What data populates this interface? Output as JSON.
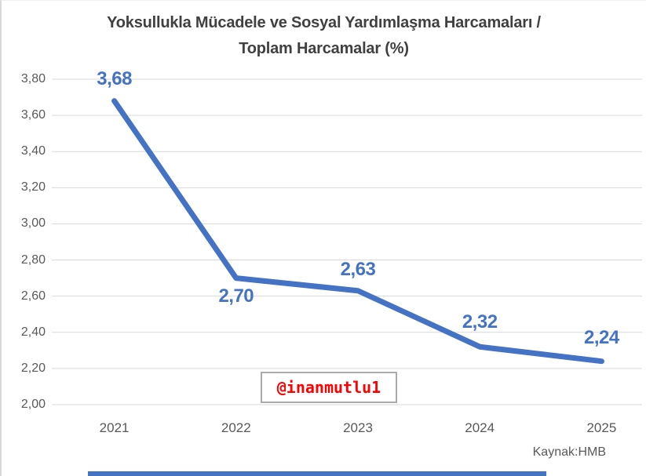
{
  "header": {
    "line1": "Yoksullukla Mücadele ve Sosyal Yardımlaşma Harcamaları /",
    "line2": "Toplam Harcamalar (%)"
  },
  "watermark": "@inanmutlu1",
  "source": "Kaynak:HMB",
  "colors": {
    "line": "#4472C4",
    "data_label": "#4472C4",
    "title": "#404040",
    "axis_label": "#595959",
    "gridline": "#D9D9D9",
    "watermark_text": "#FF0000",
    "watermark_border": "#ABABAB",
    "frame_border": "#D9D9D9",
    "bottom_bar": "#4472C4"
  },
  "chart_data": {
    "type": "line",
    "title": "Yoksullukla Mücadele ve Sosyal Yardımlaşma Harcamaları / Toplam Harcamalar (%)",
    "categories": [
      "2021",
      "2022",
      "2023",
      "2024",
      "2025"
    ],
    "values": [
      3.68,
      2.7,
      2.63,
      2.32,
      2.24
    ],
    "data_labels": [
      "3,68",
      "2,70",
      "2,63",
      "2,32",
      "2,24"
    ],
    "ylim": [
      2.0,
      3.8
    ],
    "ytick_step": 0.2,
    "ytick_labels_bottom_up": [
      "2,00",
      "2,20",
      "2,40",
      "2,60",
      "2,80",
      "3,00",
      "3,20",
      "3,40",
      "3,60",
      "3,80"
    ],
    "xlabel": "",
    "ylabel": "",
    "grid": true,
    "legend_position": "none",
    "annotations": [
      "@inanmutlu1",
      "Kaynak:HMB"
    ]
  }
}
